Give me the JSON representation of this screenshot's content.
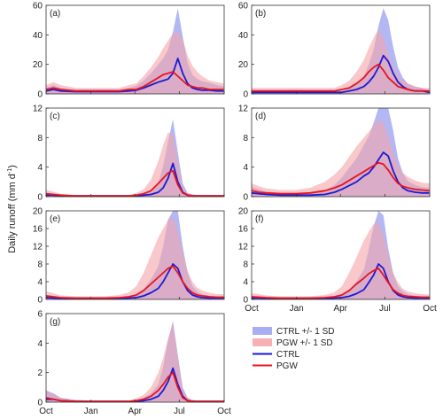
{
  "figure": {
    "ylabel": "Daily runoff (mm d",
    "ylabel_sup": "-1",
    "ylabel_tail": ")",
    "colors": {
      "ctrl_line": "#1a1ad6",
      "pgw_line": "#e8141e",
      "ctrl_band": "#9aa0f0",
      "pgw_band": "#f4a3a8",
      "axis": "#333333"
    }
  },
  "legend": {
    "placement": "bottom-right",
    "entries": [
      {
        "label": "CTRL +/- 1 SD",
        "kind": "band",
        "color": "#9aa0f0"
      },
      {
        "label": "PGW +/- 1 SD",
        "kind": "band",
        "color": "#f4a3a8"
      },
      {
        "label": "CTRL",
        "kind": "line",
        "color": "#1a1ad6"
      },
      {
        "label": "PGW",
        "kind": "line",
        "color": "#e8141e"
      }
    ]
  },
  "chart_data": [
    {
      "panel": "(a)",
      "type": "area",
      "x_tick_labels": [
        "Oct",
        "Jan",
        "Apr",
        "Jul",
        "Oct"
      ],
      "show_x_ticklabels": false,
      "ylim": [
        0,
        60
      ],
      "yticks": [
        0,
        20,
        40,
        60
      ],
      "x": [
        0,
        15,
        30,
        60,
        90,
        120,
        150,
        170,
        185,
        200,
        215,
        230,
        240,
        250,
        260,
        270,
        280,
        290,
        300,
        310,
        320,
        335,
        350,
        364
      ],
      "series": [
        {
          "name": "CTRL",
          "values": [
            2,
            3,
            2,
            1.5,
            1.5,
            1.5,
            1.5,
            2,
            2.5,
            4,
            6,
            8,
            9,
            10,
            14,
            24,
            14,
            7,
            4,
            3,
            2.5,
            2.5,
            2,
            2
          ],
          "sd": [
            2,
            3,
            2,
            1.5,
            1.5,
            1.5,
            1.5,
            2,
            3,
            5,
            8,
            12,
            15,
            20,
            28,
            34,
            25,
            14,
            9,
            7,
            6,
            5,
            4,
            3
          ]
        },
        {
          "name": "PGW",
          "values": [
            3,
            4,
            3,
            2,
            2,
            2,
            2,
            3,
            3,
            5,
            8,
            11,
            13,
            14,
            15,
            12,
            9,
            6,
            5,
            4,
            4,
            3,
            3,
            3
          ],
          "sd": [
            3,
            4,
            3,
            2,
            2,
            2,
            2,
            3,
            4,
            7,
            10,
            14,
            18,
            22,
            26,
            30,
            28,
            20,
            14,
            11,
            8,
            6,
            5,
            4
          ]
        }
      ]
    },
    {
      "panel": "(b)",
      "type": "area",
      "x_tick_labels": [
        "Oct",
        "Jan",
        "Apr",
        "Jul",
        "Oct"
      ],
      "show_x_ticklabels": false,
      "ylim": [
        0,
        60
      ],
      "yticks": [
        0,
        20,
        40,
        60
      ],
      "x": [
        0,
        15,
        30,
        60,
        90,
        120,
        150,
        170,
        185,
        200,
        215,
        230,
        240,
        250,
        260,
        270,
        280,
        290,
        300,
        310,
        320,
        335,
        350,
        364
      ],
      "series": [
        {
          "name": "CTRL",
          "values": [
            1,
            1,
            1,
            1,
            1,
            1,
            1,
            1,
            1,
            2,
            3,
            5,
            8,
            12,
            18,
            26,
            22,
            14,
            8,
            5,
            3,
            2,
            2,
            1
          ],
          "sd": [
            1,
            1,
            1,
            1,
            1,
            1,
            1,
            1,
            1,
            2,
            4,
            7,
            12,
            18,
            28,
            32,
            28,
            18,
            10,
            6,
            4,
            3,
            2,
            1
          ]
        },
        {
          "name": "PGW",
          "values": [
            2,
            2,
            2,
            2,
            2,
            2,
            2,
            2,
            3,
            4,
            7,
            11,
            15,
            18,
            20,
            16,
            11,
            8,
            5,
            4,
            3,
            2,
            2,
            2
          ],
          "sd": [
            2,
            2,
            2,
            2,
            2,
            2,
            2,
            2,
            3,
            5,
            8,
            12,
            16,
            20,
            24,
            22,
            16,
            11,
            7,
            5,
            4,
            3,
            2,
            2
          ]
        }
      ]
    },
    {
      "panel": "(c)",
      "type": "area",
      "x_tick_labels": [
        "Oct",
        "Jan",
        "Apr",
        "Jul",
        "Oct"
      ],
      "show_x_ticklabels": false,
      "ylim": [
        0,
        12
      ],
      "yticks": [
        0,
        4,
        8,
        12
      ],
      "x": [
        0,
        15,
        30,
        60,
        90,
        120,
        150,
        170,
        185,
        200,
        215,
        230,
        240,
        250,
        260,
        270,
        280,
        290,
        300,
        310,
        320,
        335,
        350,
        364
      ],
      "series": [
        {
          "name": "CTRL",
          "values": [
            0.2,
            0.2,
            0.1,
            0.1,
            0.1,
            0.1,
            0.1,
            0.1,
            0.1,
            0.2,
            0.3,
            0.6,
            1.2,
            2.5,
            4.5,
            2,
            0.6,
            0.2,
            0.1,
            0.1,
            0.1,
            0.1,
            0.1,
            0.1
          ],
          "sd": [
            0.3,
            0.2,
            0.1,
            0.1,
            0.1,
            0.1,
            0.1,
            0.1,
            0.1,
            0.3,
            0.6,
            1.2,
            3,
            5,
            6,
            4,
            1.2,
            0.3,
            0.2,
            0.1,
            0.1,
            0.1,
            0.1,
            0.1
          ]
        },
        {
          "name": "PGW",
          "values": [
            0.4,
            0.3,
            0.2,
            0.1,
            0.1,
            0.1,
            0.1,
            0.1,
            0.2,
            0.4,
            0.8,
            1.8,
            2.5,
            3.2,
            3.5,
            1.6,
            0.5,
            0.2,
            0.1,
            0.1,
            0.1,
            0.1,
            0.1,
            0.1
          ],
          "sd": [
            0.5,
            0.4,
            0.2,
            0.1,
            0.1,
            0.1,
            0.1,
            0.1,
            0.3,
            0.6,
            1.5,
            3,
            4.5,
            5.5,
            5,
            3,
            0.8,
            0.3,
            0.2,
            0.1,
            0.1,
            0.1,
            0.1,
            0.1
          ]
        }
      ]
    },
    {
      "panel": "(d)",
      "type": "area",
      "x_tick_labels": [
        "Oct",
        "Jan",
        "Apr",
        "Jul",
        "Oct"
      ],
      "show_x_ticklabels": false,
      "ylim": [
        0,
        12
      ],
      "yticks": [
        0,
        4,
        8,
        12
      ],
      "x": [
        0,
        15,
        30,
        60,
        90,
        120,
        150,
        170,
        185,
        200,
        215,
        230,
        240,
        250,
        260,
        270,
        280,
        290,
        300,
        310,
        320,
        335,
        350,
        364
      ],
      "series": [
        {
          "name": "CTRL",
          "values": [
            0.5,
            0.4,
            0.3,
            0.2,
            0.2,
            0.2,
            0.3,
            0.6,
            1,
            1.5,
            2,
            2.8,
            3.2,
            4,
            5,
            6,
            5.5,
            3.5,
            2,
            1.2,
            0.8,
            0.6,
            0.5,
            0.5
          ],
          "sd": [
            0.8,
            0.6,
            0.4,
            0.3,
            0.3,
            0.3,
            0.5,
            1,
            1.6,
            2.4,
            3.2,
            4.2,
            5,
            6,
            7.5,
            8.5,
            7.5,
            5.5,
            3.2,
            2,
            1.3,
            1,
            0.8,
            0.7
          ]
        },
        {
          "name": "PGW",
          "values": [
            0.8,
            0.6,
            0.5,
            0.4,
            0.4,
            0.5,
            0.8,
            1.2,
            1.6,
            2.2,
            2.8,
            3.4,
            3.8,
            4.2,
            4.6,
            4.4,
            3.6,
            2.6,
            1.8,
            1.4,
            1.2,
            1,
            0.9,
            0.8
          ],
          "sd": [
            1,
            0.8,
            0.6,
            0.5,
            0.5,
            0.7,
            1.2,
            1.8,
            2.4,
            3.2,
            4,
            4.6,
            5,
            5.4,
            5.8,
            5.6,
            4.6,
            3.4,
            2.4,
            1.8,
            1.5,
            1.2,
            1,
            1
          ]
        }
      ]
    },
    {
      "panel": "(e)",
      "type": "area",
      "x_tick_labels": [
        "Oct",
        "Jan",
        "Apr",
        "Jul",
        "Oct"
      ],
      "show_x_ticklabels": false,
      "ylim": [
        0,
        20
      ],
      "yticks": [
        0,
        4,
        8,
        12,
        16,
        20
      ],
      "x": [
        0,
        15,
        30,
        60,
        90,
        120,
        150,
        170,
        185,
        200,
        215,
        230,
        240,
        250,
        260,
        270,
        280,
        290,
        300,
        310,
        320,
        335,
        350,
        364
      ],
      "series": [
        {
          "name": "CTRL",
          "values": [
            0.4,
            0.3,
            0.2,
            0.2,
            0.2,
            0.2,
            0.2,
            0.3,
            0.4,
            0.8,
            1.5,
            2.5,
            4,
            6,
            8,
            7,
            4,
            2,
            1,
            0.6,
            0.4,
            0.3,
            0.3,
            0.3
          ],
          "sd": [
            0.6,
            0.4,
            0.3,
            0.3,
            0.3,
            0.3,
            0.3,
            0.5,
            0.8,
            1.6,
            3,
            5,
            8,
            12,
            15,
            13,
            8,
            4,
            2,
            1.2,
            0.8,
            0.5,
            0.4,
            0.4
          ]
        },
        {
          "name": "PGW",
          "values": [
            0.8,
            0.6,
            0.4,
            0.3,
            0.3,
            0.3,
            0.4,
            0.6,
            1,
            2,
            3.5,
            5,
            6,
            7,
            7.5,
            6,
            4,
            2.5,
            1.5,
            1,
            0.8,
            0.6,
            0.5,
            0.5
          ],
          "sd": [
            1,
            0.8,
            0.5,
            0.4,
            0.4,
            0.4,
            0.6,
            1,
            2,
            4,
            6.5,
            9,
            10,
            11,
            11,
            9.5,
            6.5,
            4,
            2.5,
            1.6,
            1.2,
            0.9,
            0.7,
            0.7
          ]
        }
      ]
    },
    {
      "panel": "(f)",
      "type": "area",
      "x_tick_labels": [
        "Oct",
        "Jan",
        "Apr",
        "Jul",
        "Oct"
      ],
      "show_x_ticklabels": true,
      "ylim": [
        0,
        20
      ],
      "yticks": [
        0,
        4,
        8,
        12,
        16,
        20
      ],
      "x": [
        0,
        15,
        30,
        60,
        90,
        120,
        150,
        170,
        185,
        200,
        215,
        230,
        240,
        250,
        260,
        270,
        280,
        290,
        300,
        310,
        320,
        335,
        350,
        364
      ],
      "series": [
        {
          "name": "CTRL",
          "values": [
            0.3,
            0.3,
            0.2,
            0.2,
            0.2,
            0.2,
            0.2,
            0.3,
            0.4,
            0.7,
            1.3,
            2.2,
            3.8,
            5.5,
            8,
            7,
            4,
            2,
            1,
            0.6,
            0.4,
            0.3,
            0.3,
            0.3
          ],
          "sd": [
            0.5,
            0.4,
            0.3,
            0.3,
            0.3,
            0.3,
            0.3,
            0.5,
            0.8,
            1.5,
            2.8,
            4.5,
            7.5,
            11,
            14,
            12,
            7.5,
            4,
            2,
            1.2,
            0.8,
            0.5,
            0.4,
            0.4
          ]
        },
        {
          "name": "PGW",
          "values": [
            0.6,
            0.5,
            0.4,
            0.3,
            0.3,
            0.3,
            0.4,
            0.6,
            1,
            2,
            3.5,
            4.8,
            5.8,
            6.5,
            7,
            5.5,
            3.8,
            2.2,
            1.4,
            0.9,
            0.7,
            0.6,
            0.5,
            0.5
          ],
          "sd": [
            0.8,
            0.7,
            0.5,
            0.4,
            0.4,
            0.4,
            0.6,
            1,
            2,
            4,
            6,
            8.5,
            9.5,
            10.5,
            10.5,
            9,
            6,
            3.8,
            2.4,
            1.5,
            1.1,
            0.8,
            0.7,
            0.6
          ]
        }
      ]
    },
    {
      "panel": "(g)",
      "type": "area",
      "x_tick_labels": [
        "Oct",
        "Jan",
        "Apr",
        "Jul",
        "Oct"
      ],
      "show_x_ticklabels": true,
      "ylim": [
        0,
        6
      ],
      "yticks": [
        0,
        2,
        4,
        6
      ],
      "x": [
        0,
        15,
        30,
        60,
        90,
        120,
        150,
        170,
        185,
        200,
        215,
        230,
        240,
        250,
        260,
        270,
        280,
        290,
        300,
        310,
        320,
        335,
        350,
        364
      ],
      "series": [
        {
          "name": "CTRL",
          "values": [
            0.2,
            0.2,
            0.1,
            0.05,
            0.05,
            0.05,
            0.05,
            0.05,
            0.05,
            0.1,
            0.2,
            0.4,
            0.8,
            1.4,
            2.3,
            1.2,
            0.4,
            0.1,
            0.05,
            0.05,
            0.05,
            0.05,
            0.05,
            0.05
          ],
          "sd": [
            0.6,
            0.4,
            0.2,
            0.1,
            0.05,
            0.05,
            0.05,
            0.05,
            0.1,
            0.2,
            0.4,
            0.8,
            1.6,
            2.8,
            3.2,
            2,
            0.6,
            0.2,
            0.1,
            0.05,
            0.05,
            0.05,
            0.05,
            0.05
          ]
        },
        {
          "name": "PGW",
          "values": [
            0.3,
            0.2,
            0.1,
            0.05,
            0.05,
            0.05,
            0.05,
            0.05,
            0.1,
            0.2,
            0.4,
            0.8,
            1.2,
            1.7,
            2,
            1,
            0.3,
            0.1,
            0.05,
            0.05,
            0.05,
            0.05,
            0.05,
            0.05
          ],
          "sd": [
            0.4,
            0.3,
            0.2,
            0.1,
            0.05,
            0.05,
            0.05,
            0.05,
            0.15,
            0.3,
            0.6,
            1.2,
            1.8,
            2.6,
            3.4,
            2,
            0.6,
            0.2,
            0.1,
            0.05,
            0.05,
            0.05,
            0.05,
            0.05
          ]
        }
      ]
    }
  ]
}
